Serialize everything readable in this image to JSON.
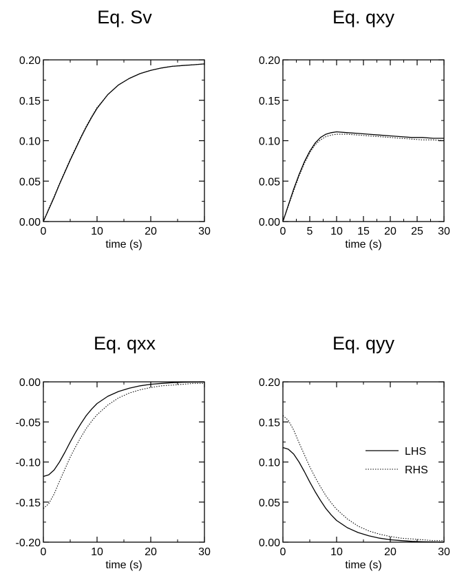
{
  "chart_data": [
    {
      "type": "line",
      "title": "Eq. Sv",
      "xlabel": "time (s)",
      "ylabel": "",
      "xlim": [
        0,
        30
      ],
      "ylim": [
        0,
        0.2
      ],
      "xticks": [
        "0",
        "10",
        "20",
        "30"
      ],
      "yticks": [
        "0.00",
        "0.05",
        "0.10",
        "0.15",
        "0.20"
      ],
      "series": [
        {
          "style": "solid",
          "x": [
            0,
            1,
            2,
            3,
            4,
            5,
            6,
            7,
            8,
            9,
            10,
            12,
            14,
            16,
            18,
            20,
            22,
            24,
            26,
            28,
            30
          ],
          "y": [
            0.0,
            0.015,
            0.03,
            0.046,
            0.061,
            0.076,
            0.09,
            0.104,
            0.117,
            0.129,
            0.14,
            0.157,
            0.169,
            0.177,
            0.183,
            0.187,
            0.19,
            0.192,
            0.193,
            0.194,
            0.195
          ]
        },
        {
          "style": "dotted",
          "x": [
            0,
            1,
            2,
            3,
            4,
            5,
            6,
            7,
            8,
            9,
            10,
            12,
            14,
            16,
            18,
            20,
            22,
            24,
            26,
            28,
            30
          ],
          "y": [
            0.0,
            0.016,
            0.031,
            0.047,
            0.062,
            0.077,
            0.091,
            0.105,
            0.118,
            0.13,
            0.141,
            0.157,
            0.169,
            0.177,
            0.183,
            0.187,
            0.19,
            0.192,
            0.193,
            0.194,
            0.195
          ]
        }
      ]
    },
    {
      "type": "line",
      "title": "Eq. qxy",
      "xlabel": "time (s)",
      "ylabel": "",
      "xlim": [
        0,
        30
      ],
      "ylim": [
        0,
        0.2
      ],
      "xticks": [
        "0",
        "5",
        "10",
        "15",
        "20",
        "25",
        "30"
      ],
      "yticks": [
        "0.00",
        "0.05",
        "0.10",
        "0.15",
        "0.20"
      ],
      "series": [
        {
          "style": "solid",
          "x": [
            0,
            1,
            2,
            3,
            4,
            5,
            6,
            7,
            8,
            9,
            10,
            12,
            14,
            16,
            18,
            20,
            22,
            24,
            26,
            28,
            30
          ],
          "y": [
            0.0,
            0.02,
            0.04,
            0.058,
            0.074,
            0.087,
            0.097,
            0.104,
            0.108,
            0.11,
            0.111,
            0.11,
            0.109,
            0.108,
            0.107,
            0.106,
            0.105,
            0.104,
            0.104,
            0.103,
            0.103
          ]
        },
        {
          "style": "dotted",
          "x": [
            0,
            1,
            2,
            3,
            4,
            5,
            6,
            7,
            8,
            9,
            10,
            12,
            14,
            16,
            18,
            20,
            22,
            24,
            26,
            28,
            30
          ],
          "y": [
            0.0,
            0.019,
            0.038,
            0.056,
            0.072,
            0.085,
            0.095,
            0.101,
            0.105,
            0.107,
            0.108,
            0.108,
            0.107,
            0.106,
            0.105,
            0.104,
            0.103,
            0.102,
            0.101,
            0.101,
            0.1
          ]
        }
      ]
    },
    {
      "type": "line",
      "title": "Eq. qxx",
      "xlabel": "time (s)",
      "ylabel": "",
      "xlim": [
        0,
        30
      ],
      "ylim": [
        -0.2,
        0
      ],
      "xticks": [
        "0",
        "10",
        "20",
        "30"
      ],
      "yticks": [
        "-0.20",
        "-0.15",
        "-0.10",
        "-0.05",
        "0.00"
      ],
      "series": [
        {
          "style": "solid",
          "x": [
            0,
            1,
            2,
            3,
            4,
            5,
            6,
            7,
            8,
            9,
            10,
            12,
            14,
            16,
            18,
            20,
            22,
            24,
            26,
            28,
            30
          ],
          "y": [
            -0.118,
            -0.116,
            -0.11,
            -0.1,
            -0.088,
            -0.075,
            -0.063,
            -0.052,
            -0.042,
            -0.034,
            -0.027,
            -0.018,
            -0.012,
            -0.008,
            -0.005,
            -0.003,
            -0.002,
            -0.001,
            -0.0005,
            -0.0003,
            -0.0002
          ]
        },
        {
          "style": "dotted",
          "x": [
            0,
            1,
            2,
            3,
            4,
            5,
            6,
            7,
            8,
            9,
            10,
            12,
            14,
            16,
            18,
            20,
            22,
            24,
            26,
            28,
            30
          ],
          "y": [
            -0.158,
            -0.152,
            -0.14,
            -0.124,
            -0.109,
            -0.094,
            -0.081,
            -0.069,
            -0.058,
            -0.049,
            -0.041,
            -0.029,
            -0.02,
            -0.014,
            -0.01,
            -0.007,
            -0.005,
            -0.004,
            -0.003,
            -0.002,
            -0.002
          ]
        }
      ]
    },
    {
      "type": "line",
      "title": "Eq. qyy",
      "xlabel": "time (s)",
      "ylabel": "",
      "xlim": [
        0,
        30
      ],
      "ylim": [
        0,
        0.2
      ],
      "xticks": [
        "0",
        "10",
        "20",
        "30"
      ],
      "yticks": [
        "0.00",
        "0.05",
        "0.10",
        "0.15",
        "0.20"
      ],
      "legend": {
        "placement": "right",
        "entries": [
          {
            "label": "LHS",
            "style": "solid"
          },
          {
            "label": "RHS",
            "style": "dotted"
          }
        ]
      },
      "series": [
        {
          "name": "LHS",
          "style": "solid",
          "x": [
            0,
            1,
            2,
            3,
            4,
            5,
            6,
            7,
            8,
            9,
            10,
            12,
            14,
            16,
            18,
            20,
            22,
            24,
            26,
            28,
            30
          ],
          "y": [
            0.118,
            0.116,
            0.11,
            0.1,
            0.088,
            0.075,
            0.063,
            0.052,
            0.042,
            0.034,
            0.027,
            0.018,
            0.012,
            0.008,
            0.005,
            0.003,
            0.002,
            0.001,
            0.0005,
            0.0003,
            0.0002
          ]
        },
        {
          "name": "RHS",
          "style": "dotted",
          "x": [
            0,
            1,
            2,
            3,
            4,
            5,
            6,
            7,
            8,
            9,
            10,
            12,
            14,
            16,
            18,
            20,
            22,
            24,
            26,
            28,
            30
          ],
          "y": [
            0.158,
            0.152,
            0.14,
            0.124,
            0.109,
            0.094,
            0.081,
            0.069,
            0.058,
            0.049,
            0.041,
            0.029,
            0.02,
            0.014,
            0.01,
            0.007,
            0.005,
            0.004,
            0.003,
            0.002,
            0.002
          ]
        }
      ]
    }
  ]
}
